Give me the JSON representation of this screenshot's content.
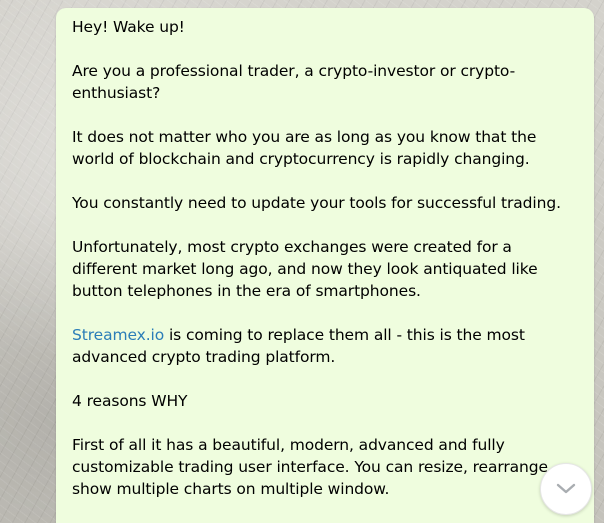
{
  "message": {
    "p1": "Hey! Wake up!",
    "p2": "Are you a professional trader, a crypto-investor or crypto-enthusiast?",
    "p3": "It does not matter who you are as long as you know that the world of blockchain and cryptocurrency is rapidly changing.",
    "p4": "You constantly need to update your tools for successful trading.",
    "p5": "Unfortunately, most crypto exchanges were created for a different market long ago, and now they look antiquated like button telephones in the era of smartphones.",
    "p6_link": "Streamex.io",
    "p6_rest": " is coming to replace them all - this is the most advanced crypto trading platform.",
    "p7": "4 reasons WHY",
    "p8": "First of all it has a beautiful, modern, advanced and fully customizable trading user interface. You can resize, rearrange, show multiple charts on multiple window."
  },
  "scroll_button": {
    "icon": "chevron-down-icon"
  },
  "colors": {
    "bubble_background": "#effdde",
    "link": "#2a7db8",
    "text": "#000000"
  }
}
